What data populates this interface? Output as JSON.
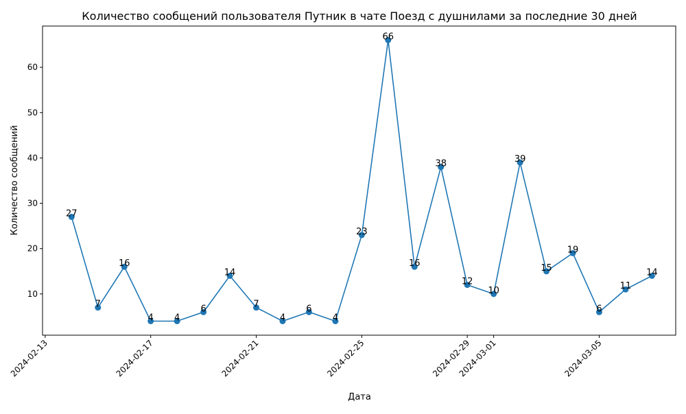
{
  "chart_data": {
    "type": "line",
    "title": "Количество сообщений пользователя Путник в чате Поезд с душнилами за последние 30 дней",
    "xlabel": "Дата",
    "ylabel": "Количество сообщений",
    "x_start": "2024-02-13",
    "x": [
      "2024-02-14",
      "2024-02-15",
      "2024-02-16",
      "2024-02-17",
      "2024-02-18",
      "2024-02-19",
      "2024-02-20",
      "2024-02-21",
      "2024-02-22",
      "2024-02-23",
      "2024-02-24",
      "2024-02-25",
      "2024-02-26",
      "2024-02-27",
      "2024-02-28",
      "2024-02-29",
      "2024-03-01",
      "2024-03-02",
      "2024-03-03",
      "2024-03-04",
      "2024-03-05",
      "2024-03-06",
      "2024-03-07"
    ],
    "values": [
      27,
      7,
      16,
      4,
      4,
      6,
      14,
      7,
      4,
      6,
      4,
      23,
      66,
      16,
      38,
      12,
      10,
      39,
      15,
      19,
      6,
      11,
      14
    ],
    "x_ticks": [
      "2024-02-13",
      "2024-02-17",
      "2024-02-21",
      "2024-02-25",
      "2024-02-29",
      "2024-03-01",
      "2024-03-05"
    ],
    "y_ticks": [
      10,
      20,
      30,
      40,
      50,
      60
    ],
    "xlim": [
      "2024-02-12.9",
      "2024-03-07.9"
    ],
    "ylim": [
      0.9,
      69.1
    ],
    "line_color": "#1f77b4",
    "grid": false,
    "legend": "none"
  }
}
